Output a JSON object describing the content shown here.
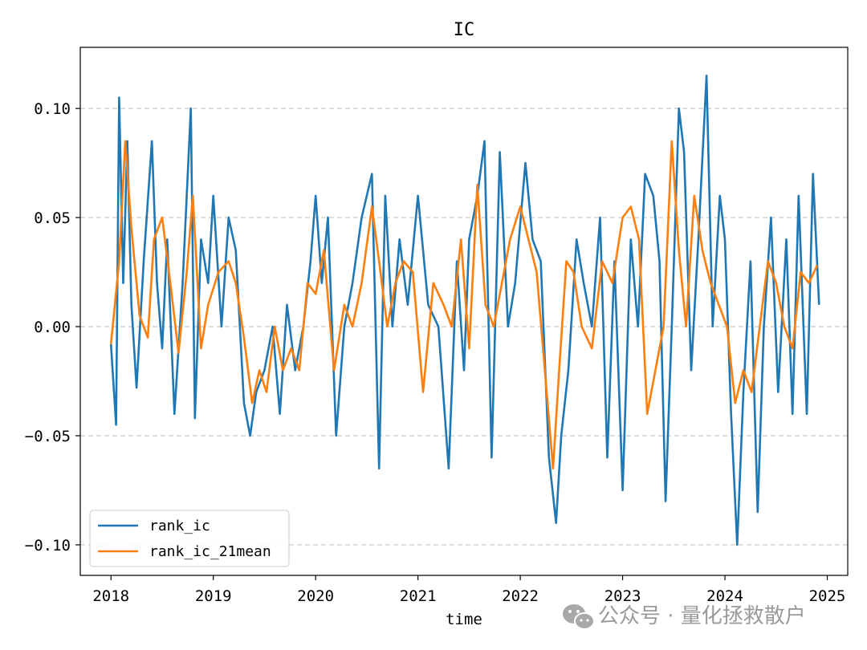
{
  "chart_data": {
    "type": "line",
    "title": "IC",
    "xlabel": "time",
    "ylabel": "",
    "xlim": [
      2017.7,
      2025.2
    ],
    "ylim": [
      -0.114,
      0.128
    ],
    "xticks": [
      2018,
      2019,
      2020,
      2021,
      2022,
      2023,
      2024,
      2025
    ],
    "xtick_labels": [
      "2018",
      "2019",
      "2020",
      "2021",
      "2022",
      "2023",
      "2024",
      "2025"
    ],
    "yticks": [
      -0.1,
      -0.05,
      0.0,
      0.05,
      0.1
    ],
    "ytick_labels": [
      "−0.10",
      "−0.05",
      "0.00",
      "0.05",
      "0.10"
    ],
    "grid": "y-dashed",
    "legend_position": "lower-left",
    "series": [
      {
        "name": "rank_ic",
        "color": "#1f77b4",
        "x": [
          2018.0,
          2018.05,
          2018.08,
          2018.12,
          2018.16,
          2018.2,
          2018.25,
          2018.32,
          2018.4,
          2018.45,
          2018.5,
          2018.55,
          2018.62,
          2018.7,
          2018.78,
          2018.82,
          2018.88,
          2018.95,
          2019.0,
          2019.08,
          2019.15,
          2019.22,
          2019.3,
          2019.36,
          2019.42,
          2019.5,
          2019.58,
          2019.65,
          2019.72,
          2019.8,
          2019.88,
          2019.95,
          2020.0,
          2020.06,
          2020.12,
          2020.2,
          2020.28,
          2020.36,
          2020.45,
          2020.55,
          2020.62,
          2020.68,
          2020.75,
          2020.82,
          2020.9,
          2021.0,
          2021.1,
          2021.2,
          2021.3,
          2021.38,
          2021.45,
          2021.5,
          2021.58,
          2021.65,
          2021.72,
          2021.8,
          2021.88,
          2021.95,
          2022.05,
          2022.12,
          2022.2,
          2022.28,
          2022.35,
          2022.4,
          2022.47,
          2022.55,
          2022.62,
          2022.7,
          2022.78,
          2022.85,
          2022.92,
          2023.0,
          2023.08,
          2023.15,
          2023.22,
          2023.3,
          2023.36,
          2023.42,
          2023.48,
          2023.55,
          2023.6,
          2023.67,
          2023.74,
          2023.82,
          2023.88,
          2023.95,
          2024.0,
          2024.06,
          2024.12,
          2024.18,
          2024.25,
          2024.32,
          2024.38,
          2024.45,
          2024.52,
          2024.6,
          2024.66,
          2024.72,
          2024.8,
          2024.86,
          2024.92
        ],
        "y": [
          -0.008,
          -0.045,
          0.105,
          0.02,
          0.085,
          0.01,
          -0.028,
          0.03,
          0.085,
          0.02,
          -0.01,
          0.04,
          -0.04,
          0.02,
          0.1,
          -0.042,
          0.04,
          0.02,
          0.06,
          0.0,
          0.05,
          0.035,
          -0.035,
          -0.05,
          -0.03,
          -0.02,
          0.0,
          -0.04,
          0.01,
          -0.02,
          0.0,
          0.03,
          0.06,
          0.02,
          0.05,
          -0.05,
          0.0,
          0.02,
          0.05,
          0.07,
          -0.065,
          0.06,
          0.0,
          0.04,
          0.01,
          0.06,
          0.01,
          0.0,
          -0.065,
          0.03,
          -0.02,
          0.04,
          0.06,
          0.085,
          -0.06,
          0.08,
          0.0,
          0.02,
          0.075,
          0.04,
          0.03,
          -0.06,
          -0.09,
          -0.05,
          -0.02,
          0.04,
          0.02,
          0.0,
          0.05,
          -0.06,
          0.03,
          -0.075,
          0.04,
          0.0,
          0.07,
          0.06,
          0.03,
          -0.08,
          0.0,
          0.1,
          0.08,
          -0.02,
          0.04,
          0.115,
          0.0,
          0.06,
          0.04,
          -0.04,
          -0.1,
          -0.03,
          0.03,
          -0.085,
          0.0,
          0.05,
          -0.03,
          0.04,
          -0.04,
          0.06,
          -0.04,
          0.07,
          0.01
        ]
      },
      {
        "name": "rank_ic_21mean",
        "color": "#ff7f0e",
        "x": [
          2018.0,
          2018.08,
          2018.14,
          2018.2,
          2018.28,
          2018.36,
          2018.42,
          2018.5,
          2018.58,
          2018.66,
          2018.74,
          2018.8,
          2018.88,
          2018.95,
          2019.05,
          2019.15,
          2019.22,
          2019.3,
          2019.38,
          2019.45,
          2019.52,
          2019.6,
          2019.68,
          2019.76,
          2019.84,
          2019.92,
          2020.0,
          2020.08,
          2020.18,
          2020.28,
          2020.36,
          2020.45,
          2020.55,
          2020.62,
          2020.7,
          2020.78,
          2020.86,
          2020.95,
          2021.05,
          2021.15,
          2021.25,
          2021.33,
          2021.42,
          2021.5,
          2021.58,
          2021.66,
          2021.74,
          2021.82,
          2021.9,
          2022.0,
          2022.08,
          2022.16,
          2022.24,
          2022.32,
          2022.38,
          2022.45,
          2022.52,
          2022.6,
          2022.7,
          2022.8,
          2022.9,
          2023.0,
          2023.08,
          2023.16,
          2023.24,
          2023.32,
          2023.4,
          2023.48,
          2023.55,
          2023.62,
          2023.7,
          2023.78,
          2023.86,
          2023.94,
          2024.02,
          2024.1,
          2024.18,
          2024.26,
          2024.34,
          2024.42,
          2024.5,
          2024.58,
          2024.66,
          2024.74,
          2024.82,
          2024.9
        ],
        "y": [
          -0.008,
          0.03,
          0.085,
          0.045,
          0.005,
          -0.005,
          0.04,
          0.05,
          0.02,
          -0.012,
          0.025,
          0.06,
          -0.01,
          0.01,
          0.025,
          0.03,
          0.02,
          -0.005,
          -0.035,
          -0.02,
          -0.03,
          0.0,
          -0.02,
          -0.01,
          -0.02,
          0.02,
          0.015,
          0.035,
          -0.02,
          0.01,
          0.0,
          0.02,
          0.055,
          0.03,
          0.0,
          0.02,
          0.03,
          0.025,
          -0.03,
          0.02,
          0.01,
          0.0,
          0.04,
          -0.01,
          0.065,
          0.01,
          0.0,
          0.02,
          0.04,
          0.055,
          0.04,
          0.025,
          -0.02,
          -0.065,
          -0.02,
          0.03,
          0.025,
          0.0,
          -0.01,
          0.03,
          0.02,
          0.05,
          0.055,
          0.04,
          -0.04,
          -0.02,
          0.0,
          0.085,
          0.035,
          0.0,
          0.06,
          0.035,
          0.02,
          0.01,
          0.0,
          -0.035,
          -0.02,
          -0.03,
          0.0,
          0.03,
          0.02,
          0.0,
          -0.01,
          0.025,
          0.02,
          0.028
        ]
      }
    ]
  },
  "watermark": {
    "icon": "wechat-icon",
    "text": "公众号 · 量化拯救散户"
  }
}
